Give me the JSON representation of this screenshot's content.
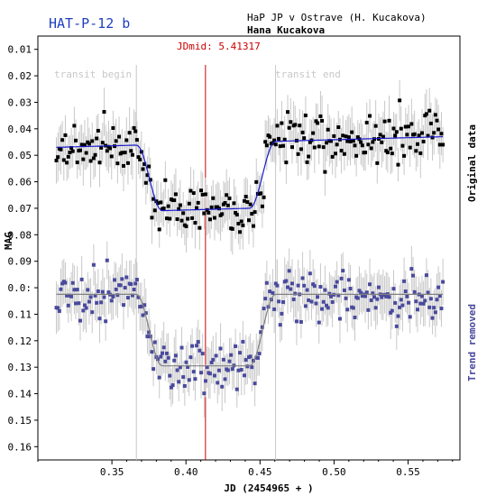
{
  "header": {
    "target": "HAT-P-12 b",
    "observer_line": "HaP JP v Ostrave (H. Kucakova)",
    "observer_name": "Hana Kucakova",
    "jdmid_label": "JDmid: 5.41317"
  },
  "colors": {
    "original": "#000000",
    "original_fit": "#1a1acc",
    "detrended": "#4a4a9c",
    "detrended_fit": "#808080",
    "errorbar": "#c8c8c8",
    "midline": "#cc0000",
    "target_title": "#1f3fbf"
  },
  "chart_data": {
    "type": "scatter",
    "xlabel": "JD (2454965 + )",
    "ylabel": "MAG",
    "xlim": [
      0.3,
      0.585
    ],
    "ylim": [
      0.165,
      0.005
    ],
    "y_inverted": true,
    "x_ticks": [
      "0.35",
      "0.40",
      "0.45",
      "0.50",
      "0.55"
    ],
    "x_tick_values": [
      0.35,
      0.4,
      0.45,
      0.5,
      0.55
    ],
    "y_ticks": [
      "0.01",
      "0.02",
      "0.03",
      "0.04",
      "0.05",
      "0.06",
      "0.07",
      "0.08",
      "0.09",
      "0.0:",
      "0.11",
      "0.12",
      "0.13",
      "0.14",
      "0.15",
      "0.16"
    ],
    "y_tick_values": [
      0.01,
      0.02,
      0.03,
      0.04,
      0.05,
      0.06,
      0.07,
      0.08,
      0.09,
      0.1,
      0.11,
      0.12,
      0.13,
      0.14,
      0.15,
      0.16
    ],
    "transit_begin": 0.3665,
    "transit_end": 0.4605,
    "transit_mid": 0.41317,
    "annotations": {
      "transit_begin": "transit begin",
      "transit_end": "transit end"
    },
    "series": [
      {
        "name": "Original data",
        "baseline_start": 0.047,
        "baseline_end": 0.043,
        "depth": 0.025,
        "scatter": 0.0065,
        "x_range": [
          0.3125,
          0.5735
        ],
        "n_points": 260
      },
      {
        "name": "Trend removed",
        "baseline": 0.1025,
        "depth": 0.027,
        "scatter": 0.0065,
        "x_range": [
          0.3125,
          0.5735
        ],
        "n_points": 260
      }
    ]
  }
}
